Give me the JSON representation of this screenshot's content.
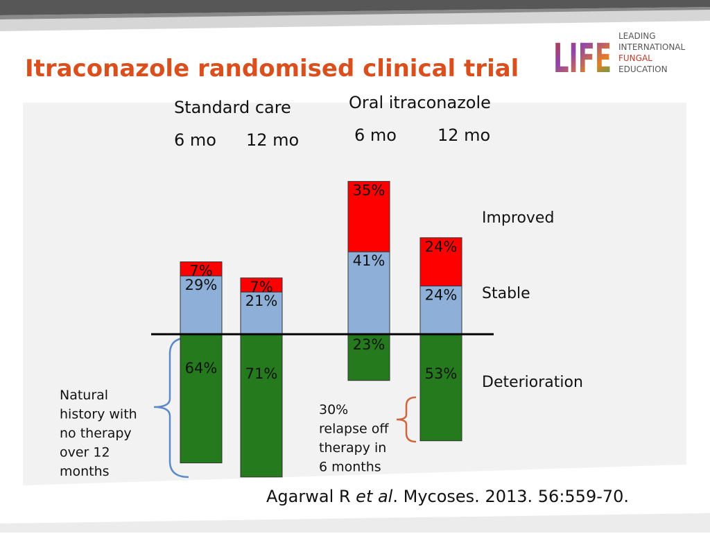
{
  "logo": {
    "mark": "LIFE",
    "lines": [
      "LEADING",
      "INTERNATIONAL",
      "FUNGAL",
      "EDUCATION"
    ]
  },
  "chart_data": {
    "type": "diverging-stacked-bar",
    "title": "Itraconazole randomised clinical trial",
    "groups": [
      "Standard care",
      "Oral itraconazole"
    ],
    "categories": [
      "6 mo",
      "12 mo",
      "6 mo",
      "12 mo"
    ],
    "series": [
      {
        "name": "Deterioration",
        "color": "#267a1e",
        "direction": "down",
        "values": [
          64,
          71,
          23,
          53
        ],
        "value_labels": [
          "64%",
          "71%",
          "23%",
          "53%"
        ]
      },
      {
        "name": "Stable",
        "color": "#8eb0d8",
        "direction": "up",
        "values": [
          29,
          21,
          41,
          24
        ],
        "value_labels": [
          "29%",
          "21%",
          "41%",
          "24%"
        ]
      },
      {
        "name": "Improved",
        "color": "#ff0000",
        "direction": "up",
        "values": [
          7,
          7,
          35,
          24
        ],
        "value_labels": [
          "7%",
          "7%",
          "35%",
          "24%"
        ]
      }
    ],
    "annotations": [
      {
        "lines": [
          "Natural",
          "history with",
          "no therapy",
          "over 12",
          "months"
        ]
      },
      {
        "lines": [
          "30%",
          "relapse off",
          "therapy in",
          "6 months"
        ]
      }
    ],
    "citation": {
      "author": "Agarwal R ",
      "etal": "et al",
      "rest": ". Mycoses. 2013. 56:559-70."
    }
  }
}
